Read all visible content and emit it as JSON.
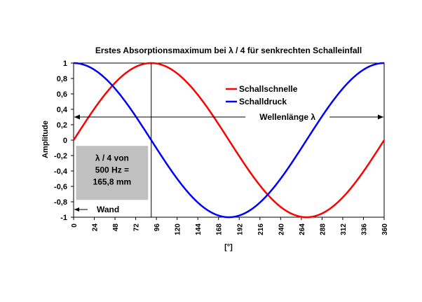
{
  "chart_data": {
    "type": "line",
    "title": "Erstes Absorptionsmaximum bei λ / 4 für senkrechten Schalleinfall",
    "xlabel": "[°]",
    "ylabel": "Amplitude",
    "xlim": [
      0,
      360
    ],
    "ylim": [
      -1,
      1
    ],
    "x_ticks": [
      0,
      24,
      48,
      72,
      96,
      120,
      144,
      168,
      192,
      216,
      240,
      264,
      288,
      312,
      336,
      360
    ],
    "y_ticks": [
      1,
      0.8,
      0.6,
      0.4,
      0.2,
      0,
      -0.2,
      -0.4,
      -0.6,
      -0.8,
      -1
    ],
    "y_tick_labels": [
      "1",
      "0,8",
      "0,6",
      "0,4",
      "0,2",
      "0",
      "-0,2",
      "-0,4",
      "-0,6",
      "-0,8",
      "-1"
    ],
    "grid": false,
    "legend_position": "top-center",
    "series": [
      {
        "name": "Schallschnelle",
        "color": "#ff0000",
        "function": "sin",
        "x": [
          0,
          15,
          30,
          45,
          60,
          75,
          90,
          105,
          120,
          135,
          150,
          165,
          180,
          195,
          210,
          225,
          240,
          255,
          270,
          285,
          300,
          315,
          330,
          345,
          360
        ],
        "y": [
          0,
          0.26,
          0.5,
          0.71,
          0.87,
          0.97,
          1,
          0.97,
          0.87,
          0.71,
          0.5,
          0.26,
          0,
          -0.26,
          -0.5,
          -0.71,
          -0.87,
          -0.97,
          -1,
          -0.97,
          -0.87,
          -0.71,
          -0.5,
          -0.26,
          0
        ]
      },
      {
        "name": "Schalldruck",
        "color": "#0000ff",
        "function": "cos",
        "x": [
          0,
          15,
          30,
          45,
          60,
          75,
          90,
          105,
          120,
          135,
          150,
          165,
          180,
          195,
          210,
          225,
          240,
          255,
          270,
          285,
          300,
          315,
          330,
          345,
          360
        ],
        "y": [
          1,
          0.97,
          0.87,
          0.71,
          0.5,
          0.26,
          0,
          -0.26,
          -0.5,
          -0.71,
          -0.87,
          -0.97,
          -1,
          -0.97,
          -0.87,
          -0.71,
          -0.5,
          -0.26,
          0,
          0.26,
          0.5,
          0.71,
          0.87,
          0.97,
          1
        ]
      }
    ],
    "annotations": {
      "wavelength_label": "Wellenlänge λ",
      "wavelength_y": 0.3,
      "quarter_marker_x": 90,
      "box_lines": [
        "λ / 4 von",
        "500 Hz =",
        "165,8 mm"
      ],
      "wall_label": "Wand",
      "wall_y": -0.9
    }
  },
  "colors": {
    "box_fill": "#c0c0c0",
    "axis": "#000000"
  }
}
